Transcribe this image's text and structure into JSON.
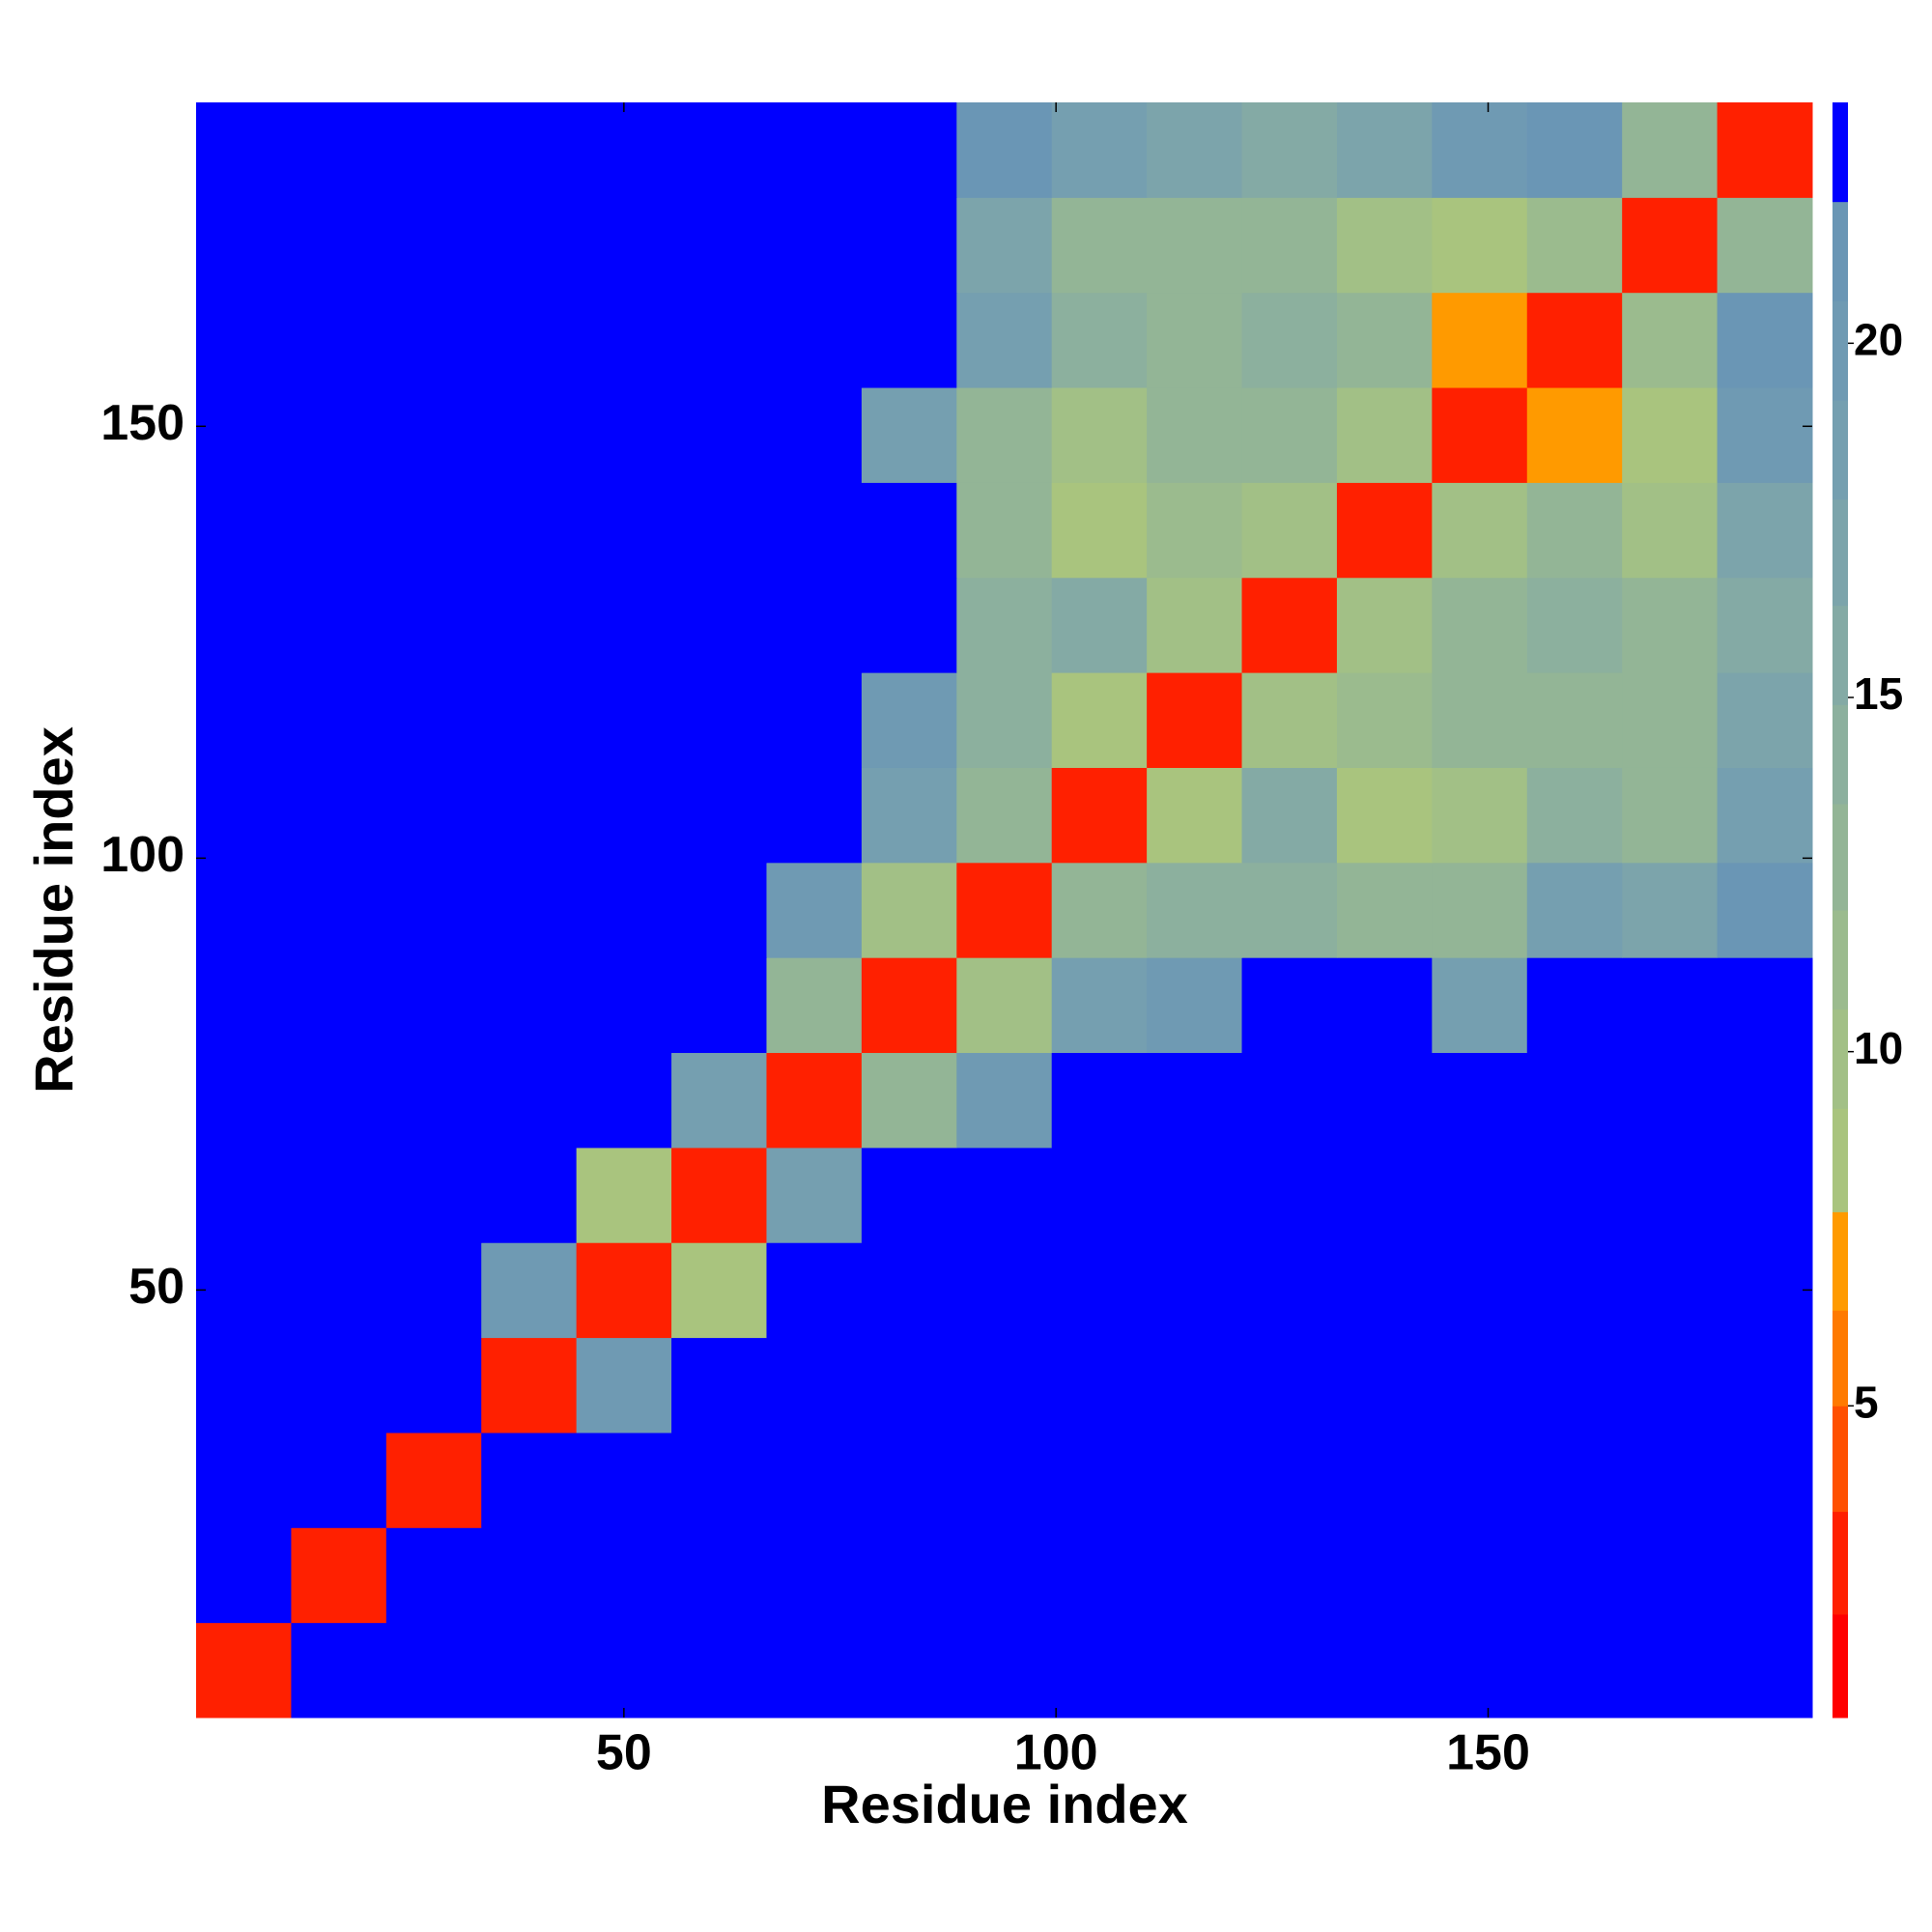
{
  "chart_data": {
    "type": "heatmap",
    "xlabel": "Residue index",
    "ylabel": "Residue index",
    "xlim": [
      0.5,
      187.5
    ],
    "ylim": [
      0.5,
      187.5
    ],
    "xticks": [
      50,
      100,
      150
    ],
    "yticks": [
      50,
      100,
      150
    ],
    "x": [
      6,
      17,
      28,
      39,
      50,
      61,
      72,
      83,
      94,
      105,
      116,
      127,
      138,
      149,
      160,
      171,
      182
    ],
    "y": [
      6,
      17,
      28,
      39,
      50,
      61,
      72,
      83,
      94,
      105,
      116,
      127,
      138,
      149,
      160,
      171,
      182
    ],
    "values": [
      [
        3,
        23,
        23,
        23,
        23,
        23,
        23,
        23,
        23,
        23,
        23,
        23,
        23,
        23,
        23,
        23,
        23
      ],
      [
        23,
        3,
        23,
        23,
        23,
        23,
        23,
        23,
        23,
        23,
        23,
        23,
        23,
        23,
        23,
        23,
        23
      ],
      [
        23,
        23,
        3,
        23,
        23,
        23,
        23,
        23,
        23,
        23,
        23,
        23,
        23,
        23,
        23,
        23,
        23
      ],
      [
        23,
        23,
        23,
        3,
        20,
        23,
        23,
        23,
        23,
        23,
        23,
        23,
        23,
        23,
        23,
        23,
        23
      ],
      [
        23,
        23,
        23,
        20,
        3,
        9,
        23,
        23,
        23,
        23,
        23,
        23,
        23,
        23,
        23,
        23,
        23
      ],
      [
        23,
        23,
        23,
        23,
        9,
        3,
        18,
        23,
        23,
        23,
        23,
        23,
        23,
        23,
        23,
        23,
        23
      ],
      [
        23,
        23,
        23,
        23,
        23,
        18,
        3,
        12,
        20,
        23,
        23,
        23,
        23,
        23,
        23,
        23,
        23
      ],
      [
        23,
        23,
        23,
        23,
        23,
        23,
        12,
        3,
        10,
        18,
        20,
        23,
        23,
        18,
        23,
        23,
        23
      ],
      [
        23,
        23,
        23,
        23,
        23,
        23,
        20,
        10,
        3,
        12,
        14,
        14,
        12,
        12,
        19,
        17,
        21
      ],
      [
        23,
        23,
        23,
        23,
        23,
        23,
        23,
        18,
        12,
        3,
        9,
        15,
        9,
        10,
        14,
        13,
        18
      ],
      [
        23,
        23,
        23,
        23,
        23,
        23,
        23,
        20,
        14,
        9,
        3,
        10,
        11,
        12,
        12,
        13,
        17
      ],
      [
        23,
        23,
        23,
        23,
        23,
        23,
        23,
        23,
        14,
        15,
        10,
        3,
        10,
        13,
        14,
        12,
        15
      ],
      [
        23,
        23,
        23,
        23,
        23,
        23,
        23,
        23,
        12,
        9,
        11,
        10,
        3,
        10,
        12,
        10,
        17
      ],
      [
        23,
        23,
        23,
        23,
        23,
        23,
        23,
        18,
        12,
        10,
        12,
        13,
        10,
        3,
        7,
        9,
        20
      ],
      [
        23,
        23,
        23,
        23,
        23,
        23,
        23,
        23,
        19,
        14,
        12,
        14,
        12,
        7,
        3,
        11,
        21
      ],
      [
        23,
        23,
        23,
        23,
        23,
        23,
        23,
        23,
        17,
        13,
        13,
        12,
        10,
        9,
        11,
        3,
        13
      ],
      [
        23,
        23,
        23,
        23,
        23,
        23,
        23,
        23,
        21,
        18,
        17,
        15,
        17,
        20,
        21,
        13,
        3
      ]
    ],
    "colorbar": {
      "levels": [
        0.6,
        2.06,
        3.51,
        5,
        6.35,
        7.74,
        9.2,
        10.6,
        12.0,
        13.5,
        14.9,
        16.3,
        17.8,
        19.2,
        20.6,
        22.0,
        23.4
      ],
      "colors": [
        "#ff0000",
        "#ff2000",
        "#ff5000",
        "#ff7a00",
        "#ff9a00",
        "#a9c47e",
        "#a2c086",
        "#9bbb8e",
        "#93b596",
        "#8cb09e",
        "#84aaa5",
        "#7ca4ab",
        "#759fb0",
        "#6f9ab3",
        "#6a96b5",
        "#0000ff"
      ],
      "ticks": [
        5,
        10,
        15,
        20
      ]
    }
  }
}
